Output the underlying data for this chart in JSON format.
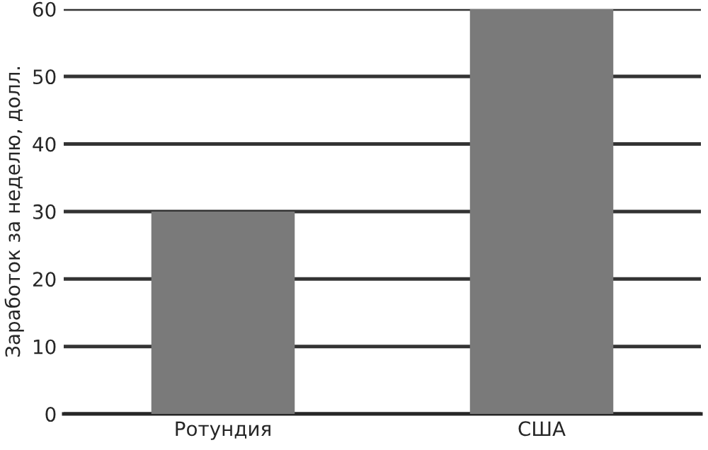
{
  "chart_data": {
    "type": "bar",
    "ylabel": "Заработок за неделю, долл.",
    "categories": [
      "Ротундия",
      "США"
    ],
    "values": [
      30,
      60
    ],
    "color": "#7a7a7a",
    "ylim": [
      0,
      60
    ],
    "yticks": [
      0,
      10,
      20,
      30,
      40,
      50,
      60
    ],
    "grid": "y"
  }
}
